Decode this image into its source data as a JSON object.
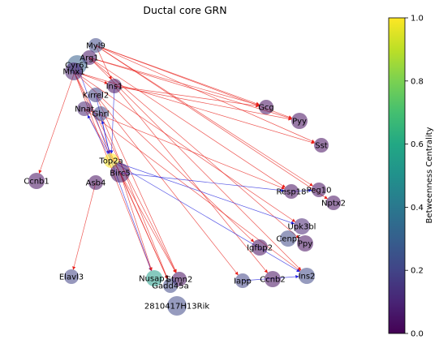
{
  "chart_data": {
    "type": "network",
    "title": "Ductal core GRN",
    "colorbar": {
      "label": "Betweenness Centrality",
      "ticks": [
        "0.0",
        "0.2",
        "0.4",
        "0.6",
        "0.8",
        "1.0"
      ],
      "range": [
        0,
        1
      ],
      "colormap": "viridis"
    },
    "nodes": [
      {
        "id": "Myl9",
        "value": 0.22
      },
      {
        "id": "Arg1",
        "value": 0.05
      },
      {
        "id": "Cyr61",
        "value": 0.3
      },
      {
        "id": "Mnx1",
        "value": 0.08
      },
      {
        "id": "Ins1",
        "value": 0.04
      },
      {
        "id": "Kirrel2",
        "value": 0.18
      },
      {
        "id": "Nnat",
        "value": 0.1
      },
      {
        "id": "Ghrl",
        "value": 0.2
      },
      {
        "id": "Gcg",
        "value": 0.03
      },
      {
        "id": "Pyy",
        "value": 0.03
      },
      {
        "id": "Sst",
        "value": 0.03
      },
      {
        "id": "Top2a",
        "value": 1.0
      },
      {
        "id": "Birc5",
        "value": 0.03
      },
      {
        "id": "Ccnb1",
        "value": 0.03
      },
      {
        "id": "Asb4",
        "value": 0.03
      },
      {
        "id": "Resp18",
        "value": 0.03
      },
      {
        "id": "Peg10",
        "value": 0.03
      },
      {
        "id": "Nptx2",
        "value": 0.03
      },
      {
        "id": "Upk3bl",
        "value": 0.1
      },
      {
        "id": "Cenpf",
        "value": 0.22
      },
      {
        "id": "Ppy",
        "value": 0.03
      },
      {
        "id": "Igfbp2",
        "value": 0.03
      },
      {
        "id": "Elavl3",
        "value": 0.2
      },
      {
        "id": "Nusap1",
        "value": 0.55
      },
      {
        "id": "Stmn2",
        "value": 0.03
      },
      {
        "id": "Gadd45a",
        "value": 0.22
      },
      {
        "id": "Iapp",
        "value": 0.2
      },
      {
        "id": "Ccnb2",
        "value": 0.03
      },
      {
        "id": "Ins2",
        "value": 0.22
      },
      {
        "id": "2810417H13Rik",
        "value": 0.22
      }
    ],
    "edges": [
      {
        "source": "Myl9",
        "target": "Gcg",
        "sign": "positive"
      },
      {
        "source": "Myl9",
        "target": "Pyy",
        "sign": "positive"
      },
      {
        "source": "Myl9",
        "target": "Sst",
        "sign": "positive"
      },
      {
        "source": "Myl9",
        "target": "Peg10",
        "sign": "positive"
      },
      {
        "source": "Myl9",
        "target": "Nptx2",
        "sign": "positive"
      },
      {
        "source": "Myl9",
        "target": "Ins1",
        "sign": "positive"
      },
      {
        "source": "Arg1",
        "target": "Gcg",
        "sign": "positive"
      },
      {
        "source": "Arg1",
        "target": "Pyy",
        "sign": "positive"
      },
      {
        "source": "Arg1",
        "target": "Resp18",
        "sign": "positive"
      },
      {
        "source": "Arg1",
        "target": "Ppy",
        "sign": "positive"
      },
      {
        "source": "Arg1",
        "target": "Ins2",
        "sign": "positive"
      },
      {
        "source": "Cyr61",
        "target": "Ccnb1",
        "sign": "positive"
      },
      {
        "source": "Cyr61",
        "target": "Top2a",
        "sign": "negative"
      },
      {
        "source": "Mnx1",
        "target": "Sst",
        "sign": "positive"
      },
      {
        "source": "Mnx1",
        "target": "Upk3bl",
        "sign": "positive"
      },
      {
        "source": "Mnx1",
        "target": "Gadd45a",
        "sign": "positive"
      },
      {
        "source": "Mnx1",
        "target": "Stmn2",
        "sign": "positive"
      },
      {
        "source": "Mnx1",
        "target": "Nusap1",
        "sign": "positive"
      },
      {
        "source": "Mnx1",
        "target": "Igfbp2",
        "sign": "positive"
      },
      {
        "source": "Mnx1",
        "target": "Ins1",
        "sign": "positive"
      },
      {
        "source": "Ins1",
        "target": "Gcg",
        "sign": "positive"
      },
      {
        "source": "Ins1",
        "target": "Pyy",
        "sign": "positive"
      },
      {
        "source": "Ins1",
        "target": "Ccnb2",
        "sign": "positive"
      },
      {
        "source": "Ins1",
        "target": "Top2a",
        "sign": "negative"
      },
      {
        "source": "Kirrel2",
        "target": "Iapp",
        "sign": "positive"
      },
      {
        "source": "Kirrel2",
        "target": "Stmn2",
        "sign": "positive"
      },
      {
        "source": "Kirrel2",
        "target": "Top2a",
        "sign": "negative"
      },
      {
        "source": "Nnat",
        "target": "Stmn2",
        "sign": "positive"
      },
      {
        "source": "Nnat",
        "target": "Ins2",
        "sign": "positive"
      },
      {
        "source": "Nnat",
        "target": "Resp18",
        "sign": "positive"
      },
      {
        "source": "Ghrl",
        "target": "Gadd45a",
        "sign": "positive"
      },
      {
        "source": "Top2a",
        "target": "Ghrl",
        "sign": "negative"
      },
      {
        "source": "Top2a",
        "target": "Nnat",
        "sign": "negative"
      },
      {
        "source": "Top2a",
        "target": "Upk3bl",
        "sign": "negative"
      },
      {
        "source": "Top2a",
        "target": "Ins2",
        "sign": "negative"
      },
      {
        "source": "Top2a",
        "target": "Nusap1",
        "sign": "negative"
      },
      {
        "source": "Birc5",
        "target": "Resp18",
        "sign": "negative"
      },
      {
        "source": "Birc5",
        "target": "Nusap1",
        "sign": "positive"
      },
      {
        "source": "Birc5",
        "target": "Gadd45a",
        "sign": "positive"
      },
      {
        "source": "Asb4",
        "target": "Elavl3",
        "sign": "positive"
      },
      {
        "source": "Iapp",
        "target": "Ins2",
        "sign": "negative"
      },
      {
        "source": "Resp18",
        "target": "Peg10",
        "sign": "negative"
      }
    ]
  }
}
